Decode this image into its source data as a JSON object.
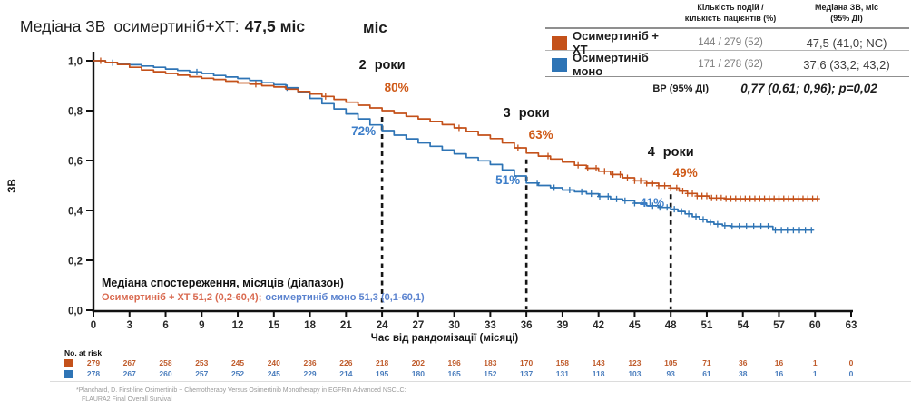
{
  "title": {
    "part1": "Медіана ЗВ",
    "part2": "осимертиніб+ХТ:",
    "value": "47,5 міс",
    "stray_unit": "міс"
  },
  "legend": {
    "col_events_header_line1": "Кількість подій /",
    "col_events_header_line2": "кількість пацієнтів (%)",
    "col_median_header_line1": "Медіана ЗВ, міс",
    "col_median_header_line2": "(95% ДІ)",
    "rows": [
      {
        "name": "Осимертиніб + ХТ",
        "events": "144 / 279 (52)",
        "median": "47,5 (41,0; NC)",
        "color": "#c4511a"
      },
      {
        "name": "Осимертиніб моно",
        "events": "171 / 278 (62)",
        "median": "37,6 (33,2; 43,2)",
        "color": "#2e74b5"
      }
    ],
    "hr_label": "ВР (95% ДІ)",
    "hr_value": "0,77 (0,61; 0,96);",
    "hr_p": "p=0,02"
  },
  "chart_data": {
    "type": "line",
    "subtype": "kaplan-meier",
    "title": "",
    "xlabel": "Час від рандомізації (місяці)",
    "ylabel": "ЗВ",
    "xlim": [
      0,
      63
    ],
    "ylim": [
      0.0,
      1.0
    ],
    "grid": false,
    "legend_position": "top-right",
    "xticks": [
      0,
      3,
      6,
      9,
      12,
      15,
      18,
      21,
      24,
      27,
      30,
      33,
      36,
      39,
      42,
      45,
      48,
      51,
      54,
      57,
      60,
      63
    ],
    "yticks": [
      0,
      0.2,
      0.4,
      0.6,
      0.8,
      1.0
    ],
    "ytick_labels": [
      "0,0",
      "0,2",
      "0,4",
      "0,6",
      "0,8",
      "1,0"
    ],
    "series": [
      {
        "name": "Осимертиніб + ХТ",
        "color": "#c4511a",
        "points": [
          [
            0,
            1
          ],
          [
            1,
            0.993
          ],
          [
            2,
            0.985
          ],
          [
            3,
            0.974
          ],
          [
            4,
            0.963
          ],
          [
            5,
            0.956
          ],
          [
            6,
            0.949
          ],
          [
            7,
            0.942
          ],
          [
            8,
            0.936
          ],
          [
            9,
            0.93
          ],
          [
            10,
            0.925
          ],
          [
            11,
            0.918
          ],
          [
            12,
            0.911
          ],
          [
            13,
            0.906
          ],
          [
            14,
            0.9
          ],
          [
            15,
            0.895
          ],
          [
            16,
            0.886
          ],
          [
            17,
            0.877
          ],
          [
            18,
            0.867
          ],
          [
            19,
            0.857
          ],
          [
            20,
            0.845
          ],
          [
            21,
            0.834
          ],
          [
            22,
            0.822
          ],
          [
            23,
            0.811
          ],
          [
            24,
            0.8
          ],
          [
            25,
            0.789
          ],
          [
            26,
            0.777
          ],
          [
            27,
            0.767
          ],
          [
            28,
            0.757
          ],
          [
            29,
            0.744
          ],
          [
            30,
            0.731
          ],
          [
            31,
            0.717
          ],
          [
            32,
            0.702
          ],
          [
            33,
            0.688
          ],
          [
            34,
            0.671
          ],
          [
            35,
            0.651
          ],
          [
            36,
            0.63
          ],
          [
            37,
            0.618
          ],
          [
            38,
            0.606
          ],
          [
            39,
            0.594
          ],
          [
            40,
            0.581
          ],
          [
            41,
            0.569
          ],
          [
            42,
            0.557
          ],
          [
            43,
            0.544
          ],
          [
            44,
            0.531
          ],
          [
            45,
            0.519
          ],
          [
            46,
            0.509
          ],
          [
            47,
            0.499
          ],
          [
            48,
            0.49
          ],
          [
            48.7,
            0.478
          ],
          [
            49.4,
            0.468
          ],
          [
            50.2,
            0.458
          ],
          [
            51.2,
            0.45
          ],
          [
            52.5,
            0.447
          ],
          [
            60.3,
            0.447
          ]
        ],
        "censors": [
          0.6,
          13.5,
          19.3,
          30.4,
          35.3,
          37.8,
          40.3,
          41.1,
          41.8,
          42.5,
          43.2,
          43.8,
          44.4,
          45.0,
          45.5,
          46.0,
          46.5,
          47.0,
          47.5,
          48.0,
          48.5,
          49.0,
          49.4,
          49.8,
          50.2,
          50.6,
          51.0,
          51.4,
          51.8,
          52.2,
          52.6,
          53.0,
          53.4,
          53.8,
          54.2,
          54.6,
          55.0,
          55.4,
          55.8,
          56.2,
          56.6,
          57.0,
          57.4,
          57.8,
          58.2,
          58.6,
          59.0,
          59.4,
          59.8,
          60.2
        ]
      },
      {
        "name": "Осимертиніб моно",
        "color": "#2e74b5",
        "points": [
          [
            0,
            1
          ],
          [
            1,
            0.992
          ],
          [
            2,
            0.988
          ],
          [
            3,
            0.984
          ],
          [
            4,
            0.979
          ],
          [
            5,
            0.974
          ],
          [
            6,
            0.967
          ],
          [
            7,
            0.961
          ],
          [
            8,
            0.955
          ],
          [
            9,
            0.949
          ],
          [
            10,
            0.941
          ],
          [
            11,
            0.935
          ],
          [
            12,
            0.929
          ],
          [
            13,
            0.921
          ],
          [
            14,
            0.912
          ],
          [
            15,
            0.904
          ],
          [
            16,
            0.892
          ],
          [
            17,
            0.876
          ],
          [
            18,
            0.849
          ],
          [
            19,
            0.828
          ],
          [
            20,
            0.807
          ],
          [
            21,
            0.787
          ],
          [
            22,
            0.767
          ],
          [
            23,
            0.743
          ],
          [
            24,
            0.72
          ],
          [
            25,
            0.702
          ],
          [
            26,
            0.687
          ],
          [
            27,
            0.671
          ],
          [
            28,
            0.657
          ],
          [
            29,
            0.642
          ],
          [
            30,
            0.627
          ],
          [
            31,
            0.612
          ],
          [
            32,
            0.599
          ],
          [
            33,
            0.584
          ],
          [
            34,
            0.562
          ],
          [
            35,
            0.538
          ],
          [
            36,
            0.51
          ],
          [
            37,
            0.5
          ],
          [
            38,
            0.491
          ],
          [
            39,
            0.482
          ],
          [
            40,
            0.475
          ],
          [
            41,
            0.467
          ],
          [
            42,
            0.456
          ],
          [
            43,
            0.446
          ],
          [
            44,
            0.439
          ],
          [
            45,
            0.429
          ],
          [
            46,
            0.419
          ],
          [
            47,
            0.412
          ],
          [
            48,
            0.405
          ],
          [
            48.6,
            0.396
          ],
          [
            49.2,
            0.386
          ],
          [
            49.8,
            0.375
          ],
          [
            50.4,
            0.364
          ],
          [
            51,
            0.353
          ],
          [
            51.6,
            0.345
          ],
          [
            52.3,
            0.339
          ],
          [
            53,
            0.336
          ],
          [
            56.2,
            0.336
          ],
          [
            56.5,
            0.321
          ],
          [
            59.8,
            0.321
          ]
        ],
        "censors": [
          1.6,
          8.6,
          16.1,
          36.9,
          38.3,
          39.6,
          40.6,
          41.4,
          42.1,
          42.8,
          43.5,
          44.2,
          45.0,
          45.8,
          46.5,
          47.1,
          47.7,
          48.3,
          48.9,
          49.5,
          50.1,
          50.7,
          51.3,
          51.9,
          52.5,
          53.1,
          53.7,
          54.3,
          54.9,
          55.5,
          56.1,
          56.7,
          57.2,
          57.7,
          58.2,
          58.7,
          59.2,
          59.7
        ]
      }
    ],
    "milestones": [
      {
        "month": 24,
        "label": "2 роки",
        "pct_combo": "80%",
        "pct_mono": "72%"
      },
      {
        "month": 36,
        "label": "3 роки",
        "pct_combo": "63%",
        "pct_mono": "51%"
      },
      {
        "month": 48,
        "label": "4 роки",
        "pct_combo": "49%",
        "pct_mono": "41%"
      }
    ],
    "at_risk": {
      "label": "No. at risk",
      "rows": [
        {
          "series": "Осимертиніб + ХТ",
          "color": "#bf5b2b",
          "values": [
            279,
            267,
            258,
            253,
            245,
            240,
            236,
            226,
            218,
            202,
            196,
            183,
            170,
            158,
            143,
            123,
            105,
            71,
            36,
            16,
            1,
            0
          ]
        },
        {
          "series": "Осимертиніб моно",
          "color": "#4a7dbd",
          "values": [
            278,
            267,
            260,
            257,
            252,
            245,
            229,
            214,
            195,
            180,
            165,
            152,
            137,
            131,
            118,
            103,
            93,
            61,
            38,
            16,
            1,
            0
          ]
        }
      ]
    }
  },
  "note": {
    "title": "Медіана спостереження, місяців (діапазон)",
    "combo_part": "Осимертиніб + ХТ 51,2 (0,2-60,4);",
    "mono_part": "осимертиніб моно 51,3 (0,1-60,1)"
  },
  "footnote": {
    "line1": "*Planchard, D. First-line Osimertinib + Chemotherapy Versus Osimertinib Monotherapy in EGFRm Advanced NSCLC:",
    "line2": "FLAURA2 Final Overall Survival"
  }
}
